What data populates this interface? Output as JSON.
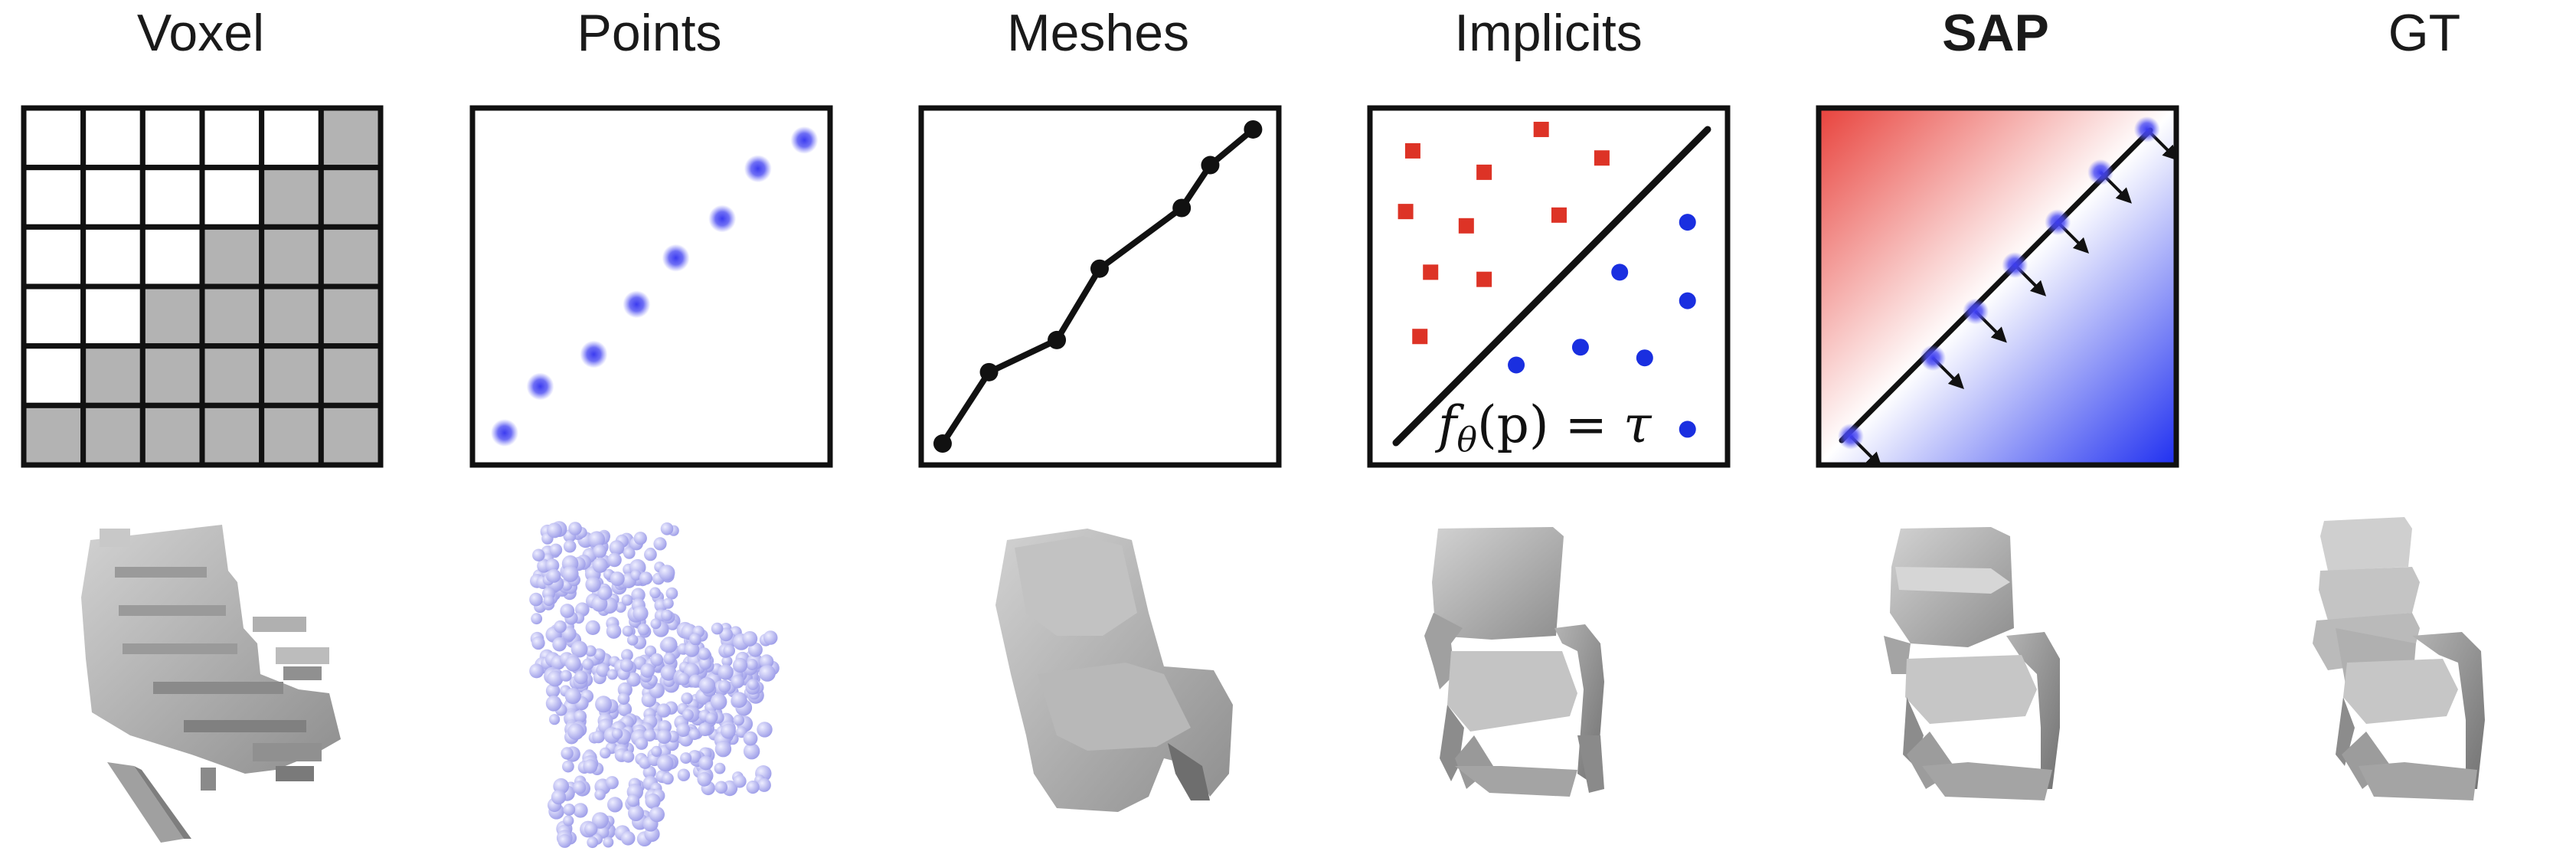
{
  "columns": [
    {
      "key": "voxel",
      "title": "Voxel",
      "bold": false
    },
    {
      "key": "points",
      "title": "Points",
      "bold": false
    },
    {
      "key": "meshes",
      "title": "Meshes",
      "bold": false
    },
    {
      "key": "implicits",
      "title": "Implicits",
      "bold": false
    },
    {
      "key": "sap",
      "title": "SAP",
      "bold": true
    },
    {
      "key": "gt",
      "title": "GT",
      "bold": false
    }
  ],
  "voxel": {
    "rows": 6,
    "cols": 6,
    "filled_per_row": [
      1,
      2,
      3,
      4,
      5,
      6
    ],
    "fill_color": "#b3b3b3"
  },
  "points": {
    "color": "#3b3bf0",
    "points": [
      [
        0.09,
        0.91
      ],
      [
        0.19,
        0.78
      ],
      [
        0.34,
        0.69
      ],
      [
        0.46,
        0.55
      ],
      [
        0.57,
        0.42
      ],
      [
        0.7,
        0.31
      ],
      [
        0.8,
        0.17
      ],
      [
        0.93,
        0.09
      ]
    ]
  },
  "meshes": {
    "vertices": [
      [
        0.06,
        0.94
      ],
      [
        0.19,
        0.74
      ],
      [
        0.38,
        0.65
      ],
      [
        0.5,
        0.45
      ],
      [
        0.73,
        0.28
      ],
      [
        0.81,
        0.16
      ],
      [
        0.93,
        0.06
      ]
    ]
  },
  "implicits": {
    "square_color": "#dd3326",
    "circle_color": "#1a2fe0",
    "outside": [
      [
        0.12,
        0.12
      ],
      [
        0.48,
        0.06
      ],
      [
        0.65,
        0.14
      ],
      [
        0.32,
        0.18
      ],
      [
        0.1,
        0.29
      ],
      [
        0.27,
        0.33
      ],
      [
        0.53,
        0.3
      ],
      [
        0.17,
        0.46
      ],
      [
        0.32,
        0.48
      ],
      [
        0.14,
        0.64
      ]
    ],
    "inside": [
      [
        0.89,
        0.32
      ],
      [
        0.7,
        0.46
      ],
      [
        0.89,
        0.54
      ],
      [
        0.59,
        0.67
      ],
      [
        0.77,
        0.7
      ],
      [
        0.41,
        0.72
      ],
      [
        0.89,
        0.9
      ]
    ],
    "equation": {
      "f": "f",
      "sub": "θ",
      "rest": "(p) = ",
      "tau": "τ"
    }
  },
  "sap": {
    "outside_color": "#e8423c",
    "inside_color": "#1f2ff0",
    "point_color": "#3b3bf0",
    "points": [
      [
        0.09,
        0.92
      ],
      [
        0.32,
        0.7
      ],
      [
        0.44,
        0.57
      ],
      [
        0.55,
        0.44
      ],
      [
        0.67,
        0.32
      ],
      [
        0.79,
        0.18
      ],
      [
        0.92,
        0.06
      ]
    ]
  },
  "chairs": {
    "mesh_color": "#a8a8a8",
    "point_color": "#b8b8f2"
  }
}
